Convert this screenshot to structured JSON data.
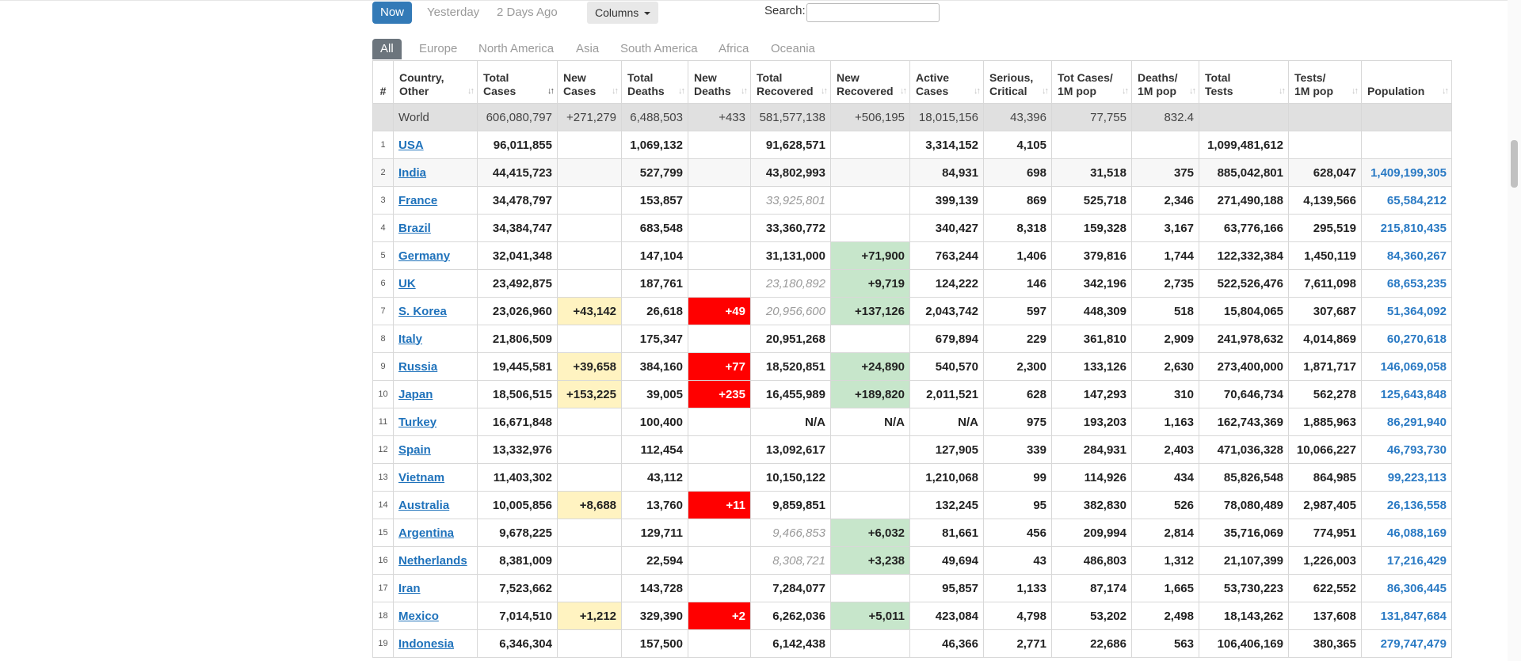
{
  "filters": {
    "days": [
      {
        "label": "Now",
        "active": true
      },
      {
        "label": "Yesterday",
        "active": false
      },
      {
        "label": "2 Days Ago",
        "active": false
      }
    ],
    "columns_label": "Columns",
    "search_label": "Search:",
    "search_value": ""
  },
  "tabs": [
    {
      "label": "All",
      "active": true
    },
    {
      "label": "Europe",
      "active": false
    },
    {
      "label": "North America",
      "active": false
    },
    {
      "label": "Asia",
      "active": false
    },
    {
      "label": "South America",
      "active": false
    },
    {
      "label": "Africa",
      "active": false
    },
    {
      "label": "Oceania",
      "active": false
    }
  ],
  "table": {
    "headers": [
      {
        "l1": "#",
        "l2": ""
      },
      {
        "l1": "Country,",
        "l2": "Other"
      },
      {
        "l1": "Total",
        "l2": "Cases"
      },
      {
        "l1": "New",
        "l2": "Cases"
      },
      {
        "l1": "Total",
        "l2": "Deaths"
      },
      {
        "l1": "New",
        "l2": "Deaths"
      },
      {
        "l1": "Total",
        "l2": "Recovered"
      },
      {
        "l1": "New",
        "l2": "Recovered"
      },
      {
        "l1": "Active",
        "l2": "Cases"
      },
      {
        "l1": "Serious,",
        "l2": "Critical"
      },
      {
        "l1": "Tot Cases/",
        "l2": "1M pop"
      },
      {
        "l1": "Deaths/",
        "l2": "1M pop"
      },
      {
        "l1": "Total",
        "l2": "Tests"
      },
      {
        "l1": "Tests/",
        "l2": "1M pop"
      },
      {
        "l1": "Population",
        "l2": ""
      }
    ],
    "sort_glyph": "↓↑",
    "world": {
      "country": "World",
      "total_cases": "606,080,797",
      "new_cases": "+271,279",
      "total_deaths": "6,488,503",
      "new_deaths": "+433",
      "total_recovered": "581,577,138",
      "new_recovered": "+506,195",
      "active": "18,015,156",
      "serious": "43,396",
      "cases_per_m": "77,755",
      "deaths_per_m": "832.4",
      "total_tests": "",
      "tests_per_m": "",
      "population": ""
    },
    "rows": [
      {
        "idx": "1",
        "country": "USA",
        "total_cases": "96,011,855",
        "new_cases": "",
        "total_deaths": "1,069,132",
        "new_deaths": "",
        "total_recovered": "91,628,571",
        "rec_est": false,
        "new_recovered": "",
        "active": "3,314,152",
        "serious": "4,105",
        "cases_per_m": "",
        "deaths_per_m": "",
        "total_tests": "1,099,481,612",
        "tests_per_m": "",
        "population": ""
      },
      {
        "idx": "2",
        "country": "India",
        "total_cases": "44,415,723",
        "new_cases": "",
        "total_deaths": "527,799",
        "new_deaths": "",
        "total_recovered": "43,802,993",
        "rec_est": false,
        "new_recovered": "",
        "active": "84,931",
        "serious": "698",
        "cases_per_m": "31,518",
        "deaths_per_m": "375",
        "total_tests": "885,042,801",
        "tests_per_m": "628,047",
        "population": "1,409,199,305"
      },
      {
        "idx": "3",
        "country": "France",
        "total_cases": "34,478,797",
        "new_cases": "",
        "total_deaths": "153,857",
        "new_deaths": "",
        "total_recovered": "33,925,801",
        "rec_est": true,
        "new_recovered": "",
        "active": "399,139",
        "serious": "869",
        "cases_per_m": "525,718",
        "deaths_per_m": "2,346",
        "total_tests": "271,490,188",
        "tests_per_m": "4,139,566",
        "population": "65,584,212"
      },
      {
        "idx": "4",
        "country": "Brazil",
        "total_cases": "34,384,747",
        "new_cases": "",
        "total_deaths": "683,548",
        "new_deaths": "",
        "total_recovered": "33,360,772",
        "rec_est": false,
        "new_recovered": "",
        "active": "340,427",
        "serious": "8,318",
        "cases_per_m": "159,328",
        "deaths_per_m": "3,167",
        "total_tests": "63,776,166",
        "tests_per_m": "295,519",
        "population": "215,810,435"
      },
      {
        "idx": "5",
        "country": "Germany",
        "total_cases": "32,041,348",
        "new_cases": "",
        "total_deaths": "147,104",
        "new_deaths": "",
        "total_recovered": "31,131,000",
        "rec_est": false,
        "new_recovered": "+71,900",
        "active": "763,244",
        "serious": "1,406",
        "cases_per_m": "379,816",
        "deaths_per_m": "1,744",
        "total_tests": "122,332,384",
        "tests_per_m": "1,450,119",
        "population": "84,360,267"
      },
      {
        "idx": "6",
        "country": "UK",
        "total_cases": "23,492,875",
        "new_cases": "",
        "total_deaths": "187,761",
        "new_deaths": "",
        "total_recovered": "23,180,892",
        "rec_est": true,
        "new_recovered": "+9,719",
        "active": "124,222",
        "serious": "146",
        "cases_per_m": "342,196",
        "deaths_per_m": "2,735",
        "total_tests": "522,526,476",
        "tests_per_m": "7,611,098",
        "population": "68,653,235"
      },
      {
        "idx": "7",
        "country": "S. Korea",
        "total_cases": "23,026,960",
        "new_cases": "+43,142",
        "total_deaths": "26,618",
        "new_deaths": "+49",
        "total_recovered": "20,956,600",
        "rec_est": true,
        "new_recovered": "+137,126",
        "active": "2,043,742",
        "serious": "597",
        "cases_per_m": "448,309",
        "deaths_per_m": "518",
        "total_tests": "15,804,065",
        "tests_per_m": "307,687",
        "population": "51,364,092"
      },
      {
        "idx": "8",
        "country": "Italy",
        "total_cases": "21,806,509",
        "new_cases": "",
        "total_deaths": "175,347",
        "new_deaths": "",
        "total_recovered": "20,951,268",
        "rec_est": false,
        "new_recovered": "",
        "active": "679,894",
        "serious": "229",
        "cases_per_m": "361,810",
        "deaths_per_m": "2,909",
        "total_tests": "241,978,632",
        "tests_per_m": "4,014,869",
        "population": "60,270,618"
      },
      {
        "idx": "9",
        "country": "Russia",
        "total_cases": "19,445,581",
        "new_cases": "+39,658",
        "total_deaths": "384,160",
        "new_deaths": "+77",
        "total_recovered": "18,520,851",
        "rec_est": false,
        "new_recovered": "+24,890",
        "active": "540,570",
        "serious": "2,300",
        "cases_per_m": "133,126",
        "deaths_per_m": "2,630",
        "total_tests": "273,400,000",
        "tests_per_m": "1,871,717",
        "population": "146,069,058"
      },
      {
        "idx": "10",
        "country": "Japan",
        "total_cases": "18,506,515",
        "new_cases": "+153,225",
        "total_deaths": "39,005",
        "new_deaths": "+235",
        "total_recovered": "16,455,989",
        "rec_est": false,
        "new_recovered": "+189,820",
        "active": "2,011,521",
        "serious": "628",
        "cases_per_m": "147,293",
        "deaths_per_m": "310",
        "total_tests": "70,646,734",
        "tests_per_m": "562,278",
        "population": "125,643,848"
      },
      {
        "idx": "11",
        "country": "Turkey",
        "total_cases": "16,671,848",
        "new_cases": "",
        "total_deaths": "100,400",
        "new_deaths": "",
        "total_recovered": "N/A",
        "rec_est": false,
        "new_recovered": "N/A",
        "active": "N/A",
        "serious": "975",
        "cases_per_m": "193,203",
        "deaths_per_m": "1,163",
        "total_tests": "162,743,369",
        "tests_per_m": "1,885,963",
        "population": "86,291,940"
      },
      {
        "idx": "12",
        "country": "Spain",
        "total_cases": "13,332,976",
        "new_cases": "",
        "total_deaths": "112,454",
        "new_deaths": "",
        "total_recovered": "13,092,617",
        "rec_est": false,
        "new_recovered": "",
        "active": "127,905",
        "serious": "339",
        "cases_per_m": "284,931",
        "deaths_per_m": "2,403",
        "total_tests": "471,036,328",
        "tests_per_m": "10,066,227",
        "population": "46,793,730"
      },
      {
        "idx": "13",
        "country": "Vietnam",
        "total_cases": "11,403,302",
        "new_cases": "",
        "total_deaths": "43,112",
        "new_deaths": "",
        "total_recovered": "10,150,122",
        "rec_est": false,
        "new_recovered": "",
        "active": "1,210,068",
        "serious": "99",
        "cases_per_m": "114,926",
        "deaths_per_m": "434",
        "total_tests": "85,826,548",
        "tests_per_m": "864,985",
        "population": "99,223,113"
      },
      {
        "idx": "14",
        "country": "Australia",
        "total_cases": "10,005,856",
        "new_cases": "+8,688",
        "total_deaths": "13,760",
        "new_deaths": "+11",
        "total_recovered": "9,859,851",
        "rec_est": false,
        "new_recovered": "",
        "active": "132,245",
        "serious": "95",
        "cases_per_m": "382,830",
        "deaths_per_m": "526",
        "total_tests": "78,080,489",
        "tests_per_m": "2,987,405",
        "population": "26,136,558"
      },
      {
        "idx": "15",
        "country": "Argentina",
        "total_cases": "9,678,225",
        "new_cases": "",
        "total_deaths": "129,711",
        "new_deaths": "",
        "total_recovered": "9,466,853",
        "rec_est": true,
        "new_recovered": "+6,032",
        "active": "81,661",
        "serious": "456",
        "cases_per_m": "209,994",
        "deaths_per_m": "2,814",
        "total_tests": "35,716,069",
        "tests_per_m": "774,951",
        "population": "46,088,169"
      },
      {
        "idx": "16",
        "country": "Netherlands",
        "total_cases": "8,381,009",
        "new_cases": "",
        "total_deaths": "22,594",
        "new_deaths": "",
        "total_recovered": "8,308,721",
        "rec_est": true,
        "new_recovered": "+3,238",
        "active": "49,694",
        "serious": "43",
        "cases_per_m": "486,803",
        "deaths_per_m": "1,312",
        "total_tests": "21,107,399",
        "tests_per_m": "1,226,003",
        "population": "17,216,429"
      },
      {
        "idx": "17",
        "country": "Iran",
        "total_cases": "7,523,662",
        "new_cases": "",
        "total_deaths": "143,728",
        "new_deaths": "",
        "total_recovered": "7,284,077",
        "rec_est": false,
        "new_recovered": "",
        "active": "95,857",
        "serious": "1,133",
        "cases_per_m": "87,174",
        "deaths_per_m": "1,665",
        "total_tests": "53,730,223",
        "tests_per_m": "622,552",
        "population": "86,306,445"
      },
      {
        "idx": "18",
        "country": "Mexico",
        "total_cases": "7,014,510",
        "new_cases": "+1,212",
        "total_deaths": "329,390",
        "new_deaths": "+2",
        "total_recovered": "6,262,036",
        "rec_est": false,
        "new_recovered": "+5,011",
        "active": "423,084",
        "serious": "4,798",
        "cases_per_m": "53,202",
        "deaths_per_m": "2,498",
        "total_tests": "18,143,262",
        "tests_per_m": "137,608",
        "population": "131,847,684"
      },
      {
        "idx": "19",
        "country": "Indonesia",
        "total_cases": "6,346,304",
        "new_cases": "",
        "total_deaths": "157,500",
        "new_deaths": "",
        "total_recovered": "6,142,438",
        "rec_est": false,
        "new_recovered": "",
        "active": "46,366",
        "serious": "2,771",
        "cases_per_m": "22,686",
        "deaths_per_m": "563",
        "total_tests": "106,406,169",
        "tests_per_m": "380,365",
        "population": "279,747,479"
      }
    ]
  },
  "colors": {
    "active_button": "#337ab7",
    "active_tab": "#6c757d",
    "world_row": "#e0e0e0",
    "new_cases_bg": "#fff3c1",
    "new_deaths_bg": "#ff0000",
    "new_recovered_bg": "#c7e6cb",
    "link": "#1f72bb",
    "population": "#2a7ac4"
  }
}
